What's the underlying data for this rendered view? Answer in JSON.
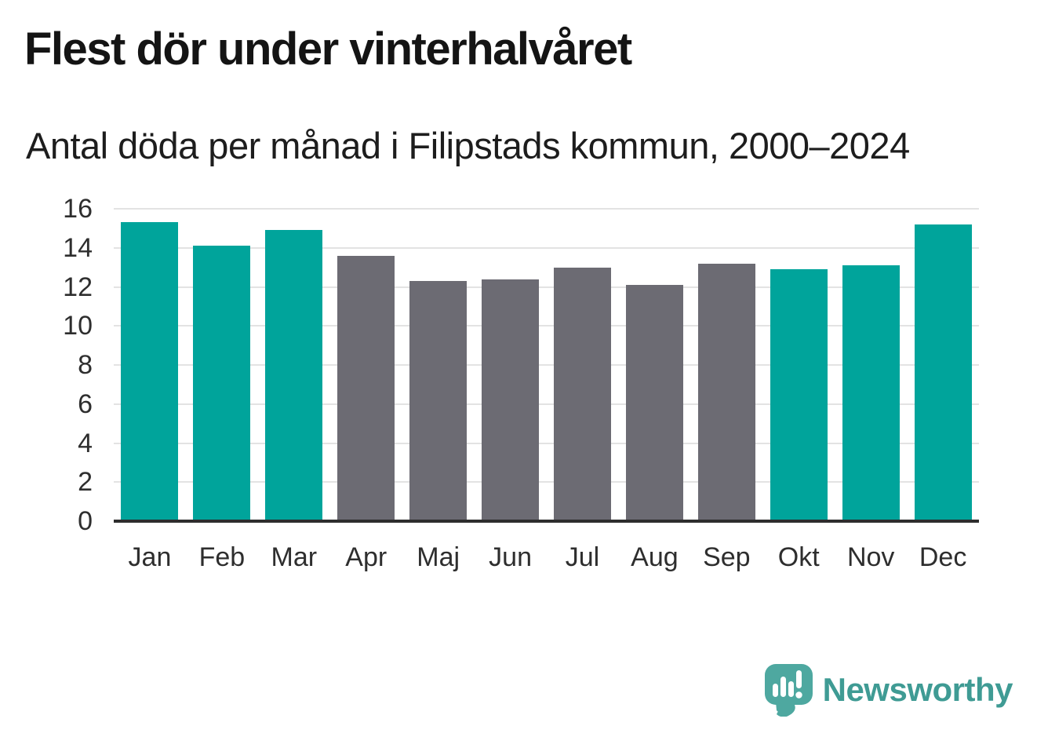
{
  "header": {
    "title": "Flest dör under vinterhalvåret",
    "subtitle": "Antal döda per månad i Filipstads kommun, 2000–2024"
  },
  "chart_data": {
    "type": "bar",
    "title": "Flest dör under vinterhalvåret",
    "subtitle": "Antal döda per månad i Filipstads kommun, 2000–2024",
    "categories": [
      "Jan",
      "Feb",
      "Mar",
      "Apr",
      "Maj",
      "Jun",
      "Jul",
      "Aug",
      "Sep",
      "Okt",
      "Nov",
      "Dec"
    ],
    "values": [
      15.3,
      14.1,
      14.9,
      13.6,
      12.3,
      12.4,
      13.0,
      12.1,
      13.2,
      12.9,
      13.1,
      15.2
    ],
    "bar_roles": [
      "winter",
      "winter",
      "winter",
      "summer",
      "summer",
      "summer",
      "summer",
      "summer",
      "summer",
      "winter",
      "winter",
      "winter"
    ],
    "xlabel": "",
    "ylabel": "",
    "ylim": [
      0,
      16
    ],
    "ytick_step": 2,
    "yticks": [
      0,
      2,
      4,
      6,
      8,
      10,
      12,
      14,
      16
    ],
    "grid": "horizontal",
    "legend": "none",
    "colors": {
      "winter": "#00a49b",
      "summer": "#6c6b73",
      "gridline": "#e3e3e3",
      "baseline": "#2d2d2d"
    }
  },
  "footer": {
    "brand": "Newsworthy",
    "brand_color": "#3f9b94",
    "logo_icon": "newsworthy-speech-bubble-barchart-icon",
    "logo_color": "#4ea8a0"
  }
}
